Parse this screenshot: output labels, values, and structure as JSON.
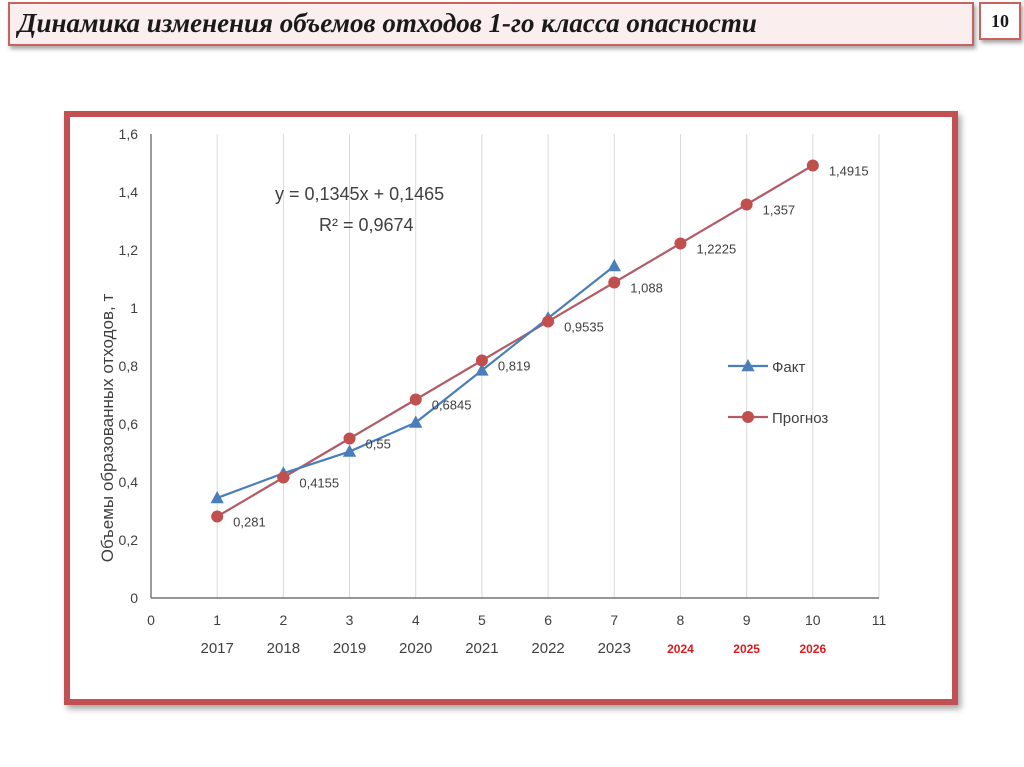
{
  "slide": {
    "title": "Динамика изменения объемов отходов 1-го класса опасности",
    "page_number": "10"
  },
  "colors": {
    "frame": "#c24f52",
    "title_border": "#c9625f",
    "fact_series": "#4a7ebb",
    "forecast_series": "#b35a66",
    "forecast_marker": "#c0504d",
    "forecast_year_label": "#e0191d"
  },
  "chart_data": {
    "type": "line",
    "title": "",
    "xlabel": "",
    "ylabel": "Объемы образованных отходов, т",
    "xlim": [
      0,
      11
    ],
    "ylim": [
      0,
      1.6
    ],
    "x_ticks": [
      0,
      1,
      2,
      3,
      4,
      5,
      6,
      7,
      8,
      9,
      10,
      11
    ],
    "y_ticks": [
      0,
      0.2,
      0.4,
      0.6,
      0.8,
      1,
      1.2,
      1.4,
      1.6
    ],
    "x_tick_labels": [
      "0",
      "1",
      "2",
      "3",
      "4",
      "5",
      "6",
      "7",
      "8",
      "9",
      "10",
      "11"
    ],
    "y_tick_labels": [
      "0",
      "0,2",
      "0,4",
      "0,6",
      "0,8",
      "1",
      "1,2",
      "1,4",
      "1,6"
    ],
    "grid": "vertical",
    "years": [
      {
        "x": 1,
        "label": "2017",
        "forecast": false
      },
      {
        "x": 2,
        "label": "2018",
        "forecast": false
      },
      {
        "x": 3,
        "label": "2019",
        "forecast": false
      },
      {
        "x": 4,
        "label": "2020",
        "forecast": false
      },
      {
        "x": 5,
        "label": "2021",
        "forecast": false
      },
      {
        "x": 6,
        "label": "2022",
        "forecast": false
      },
      {
        "x": 7,
        "label": "2023",
        "forecast": false
      },
      {
        "x": 8,
        "label": "2024",
        "forecast": true
      },
      {
        "x": 9,
        "label": "2025",
        "forecast": true
      },
      {
        "x": 10,
        "label": "2026",
        "forecast": true
      }
    ],
    "series": [
      {
        "name": "Факт",
        "marker": "triangle",
        "x": [
          1,
          2,
          3,
          4,
          5,
          6,
          7
        ],
        "y": [
          0.345,
          0.43,
          0.505,
          0.605,
          0.785,
          0.965,
          1.145
        ]
      },
      {
        "name": "Прогноз",
        "marker": "circle",
        "x": [
          1,
          2,
          3,
          4,
          5,
          6,
          7,
          8,
          9,
          10
        ],
        "y": [
          0.281,
          0.4155,
          0.55,
          0.6845,
          0.819,
          0.9535,
          1.088,
          1.2225,
          1.357,
          1.4915
        ],
        "labels": [
          "0,281",
          "0,4155",
          "0,55",
          "0,6845",
          "0,819",
          "0,9535",
          "1,088",
          "1,2225",
          "1,357",
          "1,4915"
        ]
      }
    ],
    "annotations": [
      "y = 0,1345x + 0,1465",
      "R² = 0,9674"
    ],
    "legend_position": "right"
  }
}
